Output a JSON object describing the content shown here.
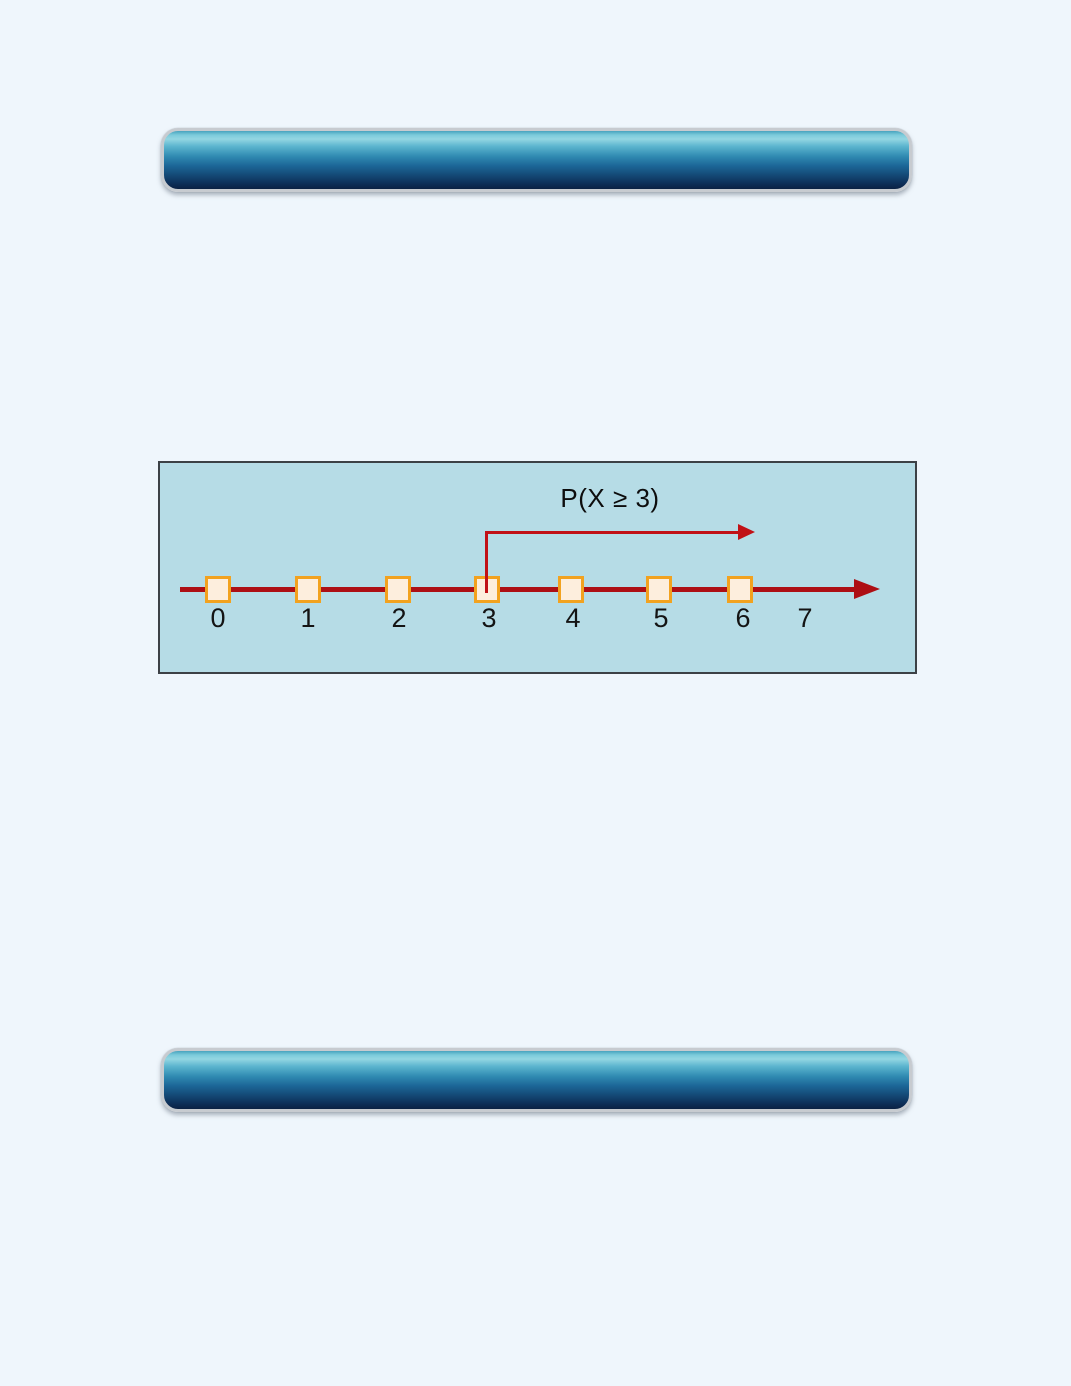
{
  "page": {
    "background_color": "#eff6fc"
  },
  "banners": {
    "top": {
      "label": ""
    },
    "bottom": {
      "label": ""
    }
  },
  "figure": {
    "annotation_label": "P(X ≥ 3)",
    "annotation_from_tick": "3",
    "tick_labels": [
      "0",
      "1",
      "2",
      "3",
      "4",
      "5",
      "6",
      "7"
    ],
    "marker_ticks": [
      "0",
      "1",
      "2",
      "3",
      "4",
      "5",
      "6"
    ],
    "colors": {
      "panel_background": "#b6dce6",
      "panel_border": "#3c4146",
      "number_line_red": "#ad0f14",
      "annotation_red": "#c11116",
      "marker_fill": "#fdeedd",
      "marker_border": "#f2a21f",
      "banner_highlight": "#93d6e2",
      "banner_dark": "#0b2143",
      "banner_ring": "#c7cbd0"
    }
  }
}
